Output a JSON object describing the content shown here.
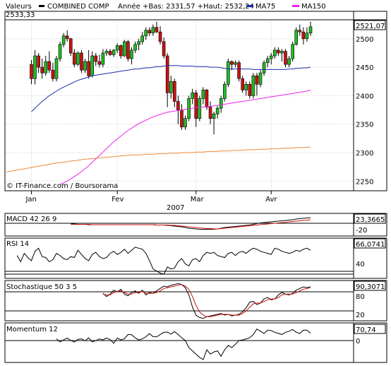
{
  "header": {
    "valeurs_label": "Valeurs",
    "instrument": "COMBINED COMP",
    "stats": "Année +Bas: 2331,57 +Haut: 2532,24",
    "ma75_label": "MA75",
    "ma150_label": "MA150",
    "top_value": "2533,33"
  },
  "colors": {
    "ma75": "#1f2bb0",
    "ma150": "#ee22ee",
    "long_ma": "#ee8a3a",
    "up_candle": "#22bb22",
    "down_candle": "#cc1111",
    "signal": "#cc1111",
    "frame": "#000000",
    "grid": "#c8c8c8"
  },
  "chart_data": [
    {
      "type": "candlestick",
      "name": "price",
      "title": "COMBINED COMP",
      "credit": "© IT-Finance.com / Boursorama",
      "x_tick_labels": [
        "Jan",
        "Fev",
        "Mar",
        "Avr"
      ],
      "x_tick_positions": [
        7,
        31,
        53,
        74
      ],
      "x_axis_title": "2007",
      "x_count": 86,
      "ylim": [
        2233,
        2533.33
      ],
      "y_ticks": [
        2250,
        2300,
        2350,
        2400,
        2450,
        2500
      ],
      "y_tick_labels": [
        "2250",
        "2300",
        "2350",
        "2400",
        "2450",
        "2500"
      ],
      "last_value_label": "2521,07",
      "last_value": 2521.07,
      "grid": true,
      "ohlc": [
        [
          2455,
          2463,
          2420,
          2430
        ],
        [
          2430,
          2480,
          2420,
          2470
        ],
        [
          2470,
          2475,
          2440,
          2450
        ],
        [
          2450,
          2465,
          2430,
          2440
        ],
        [
          2440,
          2470,
          2435,
          2460
        ],
        [
          2460,
          2478,
          2440,
          2445
        ],
        [
          2445,
          2458,
          2425,
          2430
        ],
        [
          2430,
          2470,
          2425,
          2465
        ],
        [
          2465,
          2495,
          2460,
          2490
        ],
        [
          2490,
          2510,
          2485,
          2505
        ],
        [
          2505,
          2515,
          2495,
          2500
        ],
        [
          2500,
          2502,
          2470,
          2475
        ],
        [
          2475,
          2482,
          2450,
          2455
        ],
        [
          2455,
          2478,
          2452,
          2475
        ],
        [
          2475,
          2480,
          2440,
          2445
        ],
        [
          2445,
          2465,
          2440,
          2460
        ],
        [
          2460,
          2480,
          2430,
          2435
        ],
        [
          2435,
          2478,
          2432,
          2470
        ],
        [
          2470,
          2475,
          2452,
          2460
        ],
        [
          2460,
          2472,
          2450,
          2455
        ],
        [
          2455,
          2482,
          2450,
          2475
        ],
        [
          2475,
          2482,
          2470,
          2478
        ],
        [
          2478,
          2482,
          2470,
          2472
        ],
        [
          2472,
          2482,
          2468,
          2480
        ],
        [
          2480,
          2492,
          2475,
          2488
        ],
        [
          2488,
          2490,
          2465,
          2470
        ],
        [
          2470,
          2498,
          2468,
          2495
        ],
        [
          2495,
          2498,
          2460,
          2465
        ],
        [
          2465,
          2485,
          2455,
          2480
        ],
        [
          2480,
          2495,
          2475,
          2490
        ],
        [
          2490,
          2500,
          2480,
          2495
        ],
        [
          2495,
          2512,
          2490,
          2505
        ],
        [
          2505,
          2520,
          2498,
          2515
        ],
        [
          2515,
          2520,
          2505,
          2510
        ],
        [
          2510,
          2525,
          2505,
          2520
        ],
        [
          2520,
          2530,
          2510,
          2512
        ],
        [
          2512,
          2522,
          2490,
          2495
        ],
        [
          2495,
          2502,
          2465,
          2470
        ],
        [
          2470,
          2475,
          2380,
          2405
        ],
        [
          2405,
          2435,
          2395,
          2425
        ],
        [
          2425,
          2430,
          2380,
          2390
        ],
        [
          2390,
          2400,
          2350,
          2375
        ],
        [
          2375,
          2385,
          2340,
          2345
        ],
        [
          2345,
          2365,
          2340,
          2360
        ],
        [
          2360,
          2400,
          2355,
          2395
        ],
        [
          2395,
          2412,
          2385,
          2405
        ],
        [
          2405,
          2410,
          2345,
          2360
        ],
        [
          2360,
          2400,
          2355,
          2395
        ],
        [
          2395,
          2415,
          2385,
          2410
        ],
        [
          2410,
          2412,
          2375,
          2380
        ],
        [
          2380,
          2390,
          2350,
          2360
        ],
        [
          2360,
          2372,
          2332,
          2368
        ],
        [
          2368,
          2382,
          2360,
          2378
        ],
        [
          2378,
          2400,
          2370,
          2395
        ],
        [
          2395,
          2425,
          2390,
          2420
        ],
        [
          2420,
          2465,
          2415,
          2460
        ],
        [
          2460,
          2462,
          2445,
          2455
        ],
        [
          2455,
          2462,
          2450,
          2458
        ],
        [
          2458,
          2462,
          2425,
          2430
        ],
        [
          2430,
          2435,
          2405,
          2410
        ],
        [
          2410,
          2425,
          2400,
          2420
        ],
        [
          2420,
          2425,
          2395,
          2400
        ],
        [
          2400,
          2440,
          2395,
          2435
        ],
        [
          2435,
          2440,
          2400,
          2420
        ],
        [
          2420,
          2445,
          2415,
          2440
        ],
        [
          2440,
          2462,
          2435,
          2458
        ],
        [
          2458,
          2470,
          2450,
          2465
        ],
        [
          2465,
          2475,
          2455,
          2470
        ],
        [
          2470,
          2485,
          2465,
          2480
        ],
        [
          2480,
          2485,
          2470,
          2475
        ],
        [
          2475,
          2482,
          2460,
          2478
        ],
        [
          2478,
          2482,
          2450,
          2455
        ],
        [
          2455,
          2470,
          2450,
          2465
        ],
        [
          2465,
          2495,
          2460,
          2490
        ],
        [
          2490,
          2520,
          2488,
          2515
        ],
        [
          2515,
          2525,
          2505,
          2512
        ],
        [
          2512,
          2520,
          2490,
          2500
        ],
        [
          2500,
          2520,
          2495,
          2510
        ],
        [
          2510,
          2530,
          2505,
          2521.07
        ]
      ],
      "ma75": [
        2372,
        2378,
        2384,
        2390,
        2395,
        2400,
        2404,
        2408,
        2412,
        2415,
        2418,
        2421,
        2424,
        2427,
        2429,
        2431,
        2433,
        2435,
        2436,
        2437,
        2438,
        2439,
        2440,
        2441,
        2442,
        2443,
        2444,
        2445,
        2446,
        2447,
        2447,
        2448,
        2449,
        2449,
        2450,
        2451,
        2451,
        2452,
        2453,
        2453,
        2453,
        2453,
        2452,
        2452,
        2452,
        2452,
        2451,
        2451,
        2451,
        2451,
        2450,
        2450,
        2450,
        2449,
        2448,
        2447,
        2447,
        2447,
        2447,
        2447,
        2447,
        2447,
        2446,
        2446,
        2446,
        2446,
        2446,
        2446,
        2446,
        2446,
        2446,
        2446,
        2447,
        2447,
        2448,
        2448,
        2449,
        2449,
        2450
      ],
      "ma150": [
        2244,
        2247,
        2250,
        2254,
        2258,
        2262,
        2267,
        2272,
        2277,
        2283,
        2289,
        2295,
        2301,
        2307,
        2313,
        2319,
        2324,
        2329,
        2334,
        2339,
        2343,
        2347,
        2351,
        2354,
        2357,
        2360,
        2363,
        2365,
        2367,
        2369,
        2371,
        2372,
        2373,
        2374,
        2375,
        2376,
        2377,
        2378,
        2379,
        2380,
        2380,
        2381,
        2381,
        2382,
        2383,
        2384,
        2385,
        2386,
        2387,
        2388,
        2389,
        2390,
        2391,
        2392,
        2393,
        2394,
        2395,
        2396,
        2397,
        2398,
        2399,
        2400,
        2401,
        2402,
        2403,
        2404,
        2405,
        2406,
        2407,
        2408,
        2410
      ],
      "long_ma": [
        2266,
        2268,
        2270,
        2272,
        2274,
        2276,
        2278,
        2280,
        2282,
        2283,
        2285,
        2286,
        2288,
        2289,
        2290,
        2291,
        2292,
        2293,
        2294,
        2295,
        2296,
        2296,
        2297,
        2297,
        2298,
        2298,
        2299,
        2299,
        2300,
        2300,
        2301,
        2301,
        2302,
        2302,
        2303,
        2303,
        2304,
        2304,
        2305,
        2305,
        2306,
        2306,
        2307,
        2307,
        2308,
        2308,
        2309,
        2309,
        2310
      ]
    },
    {
      "type": "line",
      "name": "macd",
      "title": "MACD 42 26 9",
      "last_value_label": "23,3665",
      "ylim": [
        -28,
        32
      ],
      "y_ticks": [
        -20
      ],
      "y_tick_labels": [
        "-20"
      ],
      "series": [
        {
          "values": [
            6,
            6,
            5,
            5,
            5,
            4,
            4,
            4,
            4,
            4,
            4,
            4,
            4,
            4,
            4,
            4,
            4,
            4,
            4,
            4,
            4,
            4,
            4,
            4,
            3,
            3,
            3,
            2,
            1,
            0,
            -1,
            -2,
            -4,
            -6,
            -7,
            -8,
            -9,
            -9,
            -9,
            -9,
            -9,
            -8,
            -6,
            -4,
            -3,
            -2,
            -1,
            0,
            1,
            2,
            3,
            5,
            7,
            9,
            10,
            11,
            12,
            13,
            14,
            15,
            16,
            17,
            18,
            20,
            21,
            22,
            23,
            23.37
          ]
        },
        {
          "values": [
            5,
            5,
            5,
            5,
            5,
            5,
            4,
            4,
            4,
            4,
            4,
            4,
            4,
            4,
            4,
            4,
            4,
            4,
            4,
            4,
            4,
            4,
            4,
            4,
            3,
            3,
            3,
            3,
            2,
            2,
            1,
            0,
            -1,
            -2,
            -3,
            -4,
            -5,
            -6,
            -7,
            -7,
            -8,
            -8,
            -7,
            -6,
            -5,
            -4,
            -3,
            -2,
            -1,
            0,
            1,
            2,
            3,
            4,
            5,
            6,
            7,
            8,
            9,
            10,
            11,
            12,
            13,
            14,
            15,
            16,
            17,
            18
          ]
        }
      ]
    },
    {
      "type": "line",
      "name": "rsi",
      "title": "RSI 14",
      "last_value_label": "66,0741",
      "ylim": [
        12,
        88
      ],
      "y_ticks": [
        40
      ],
      "y_tick_labels": [
        "40"
      ],
      "series": [
        {
          "values": [
            56,
            44,
            60,
            52,
            46,
            64,
            70,
            54,
            52,
            44,
            48,
            60,
            56,
            50,
            48,
            54,
            52,
            66,
            58,
            50,
            46,
            58,
            62,
            54,
            50,
            52,
            60,
            64,
            58,
            62,
            68,
            60,
            66,
            72,
            70,
            68,
            60,
            46,
            30,
            26,
            22,
            20,
            34,
            30,
            32,
            44,
            50,
            40,
            36,
            48,
            50,
            44,
            56,
            62,
            60,
            62,
            56,
            54,
            52,
            60,
            62,
            56,
            62,
            64,
            60,
            66,
            70,
            68,
            64,
            62,
            60,
            58,
            70,
            68,
            64,
            62,
            60,
            62,
            66,
            64,
            68,
            70,
            66.07
          ]
        }
      ]
    },
    {
      "type": "line",
      "name": "stochastic",
      "title": "Stochastique 50 3 5",
      "last_value_label": "90,3071",
      "ylim": [
        6,
        104
      ],
      "y_ticks": [
        20,
        80
      ],
      "y_tick_labels": [
        "20",
        "80"
      ],
      "series": [
        {
          "values": [
            74,
            66,
            72,
            82,
            78,
            84,
            72,
            68,
            76,
            80,
            74,
            82,
            70,
            76,
            74,
            80,
            86,
            92,
            90,
            94,
            96,
            98,
            96,
            88,
            70,
            40,
            20,
            14,
            12,
            16,
            18,
            20,
            22,
            24,
            20,
            22,
            18,
            20,
            22,
            28,
            38,
            52,
            54,
            46,
            50,
            60,
            64,
            58,
            60,
            70,
            76,
            72,
            70,
            74,
            82,
            86,
            90,
            88,
            90.31
          ]
        },
        {
          "values": [
            72,
            70,
            70,
            76,
            78,
            80,
            76,
            72,
            72,
            76,
            76,
            78,
            74,
            74,
            74,
            76,
            80,
            86,
            88,
            90,
            92,
            94,
            96,
            92,
            84,
            66,
            44,
            28,
            20,
            16,
            16,
            18,
            20,
            22,
            22,
            22,
            20,
            20,
            20,
            24,
            30,
            40,
            48,
            50,
            50,
            54,
            58,
            60,
            60,
            64,
            70,
            72,
            72,
            72,
            76,
            80,
            84,
            86,
            88
          ]
        }
      ]
    },
    {
      "type": "line",
      "name": "momentum",
      "title": "Momentum 12",
      "last_value_label": "70,74",
      "ylim": [
        -190,
        160
      ],
      "y_ticks": [
        0
      ],
      "y_tick_labels": [
        "0"
      ],
      "series": [
        {
          "values": [
            20,
            -8,
            10,
            28,
            6,
            -10,
            16,
            20,
            2,
            30,
            -8,
            4,
            20,
            10,
            28,
            14,
            -20,
            28,
            10,
            22,
            60,
            58,
            30,
            10,
            20,
            40,
            68,
            40,
            38,
            60,
            80,
            82,
            64,
            86,
            60,
            30,
            6,
            -60,
            -90,
            -120,
            -150,
            -170,
            -80,
            -120,
            -100,
            -90,
            -140,
            -80,
            -40,
            -60,
            -30,
            6,
            10,
            20,
            30,
            60,
            110,
            90,
            70,
            100,
            96,
            80,
            70,
            60,
            80,
            90,
            106,
            80,
            70,
            100,
            100,
            70.74
          ]
        }
      ]
    }
  ]
}
